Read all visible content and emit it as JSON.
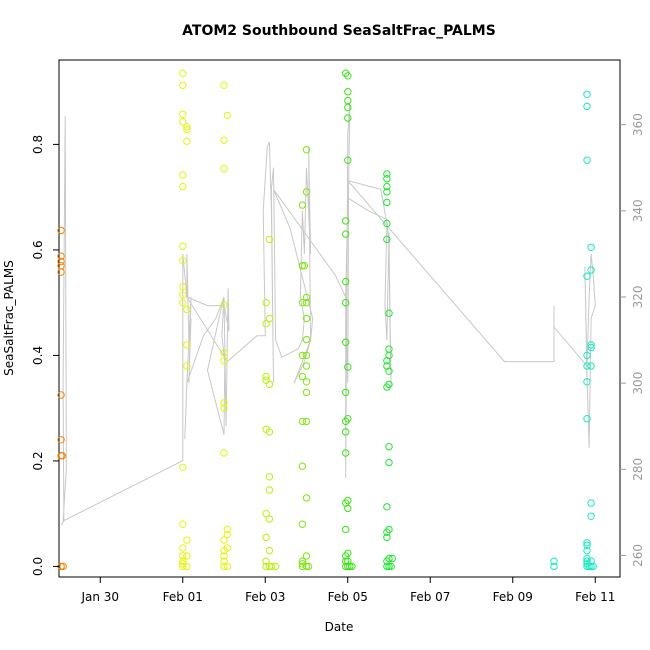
{
  "chart_data": {
    "type": "scatter",
    "title": "ATOM2 Southbound SeaSaltFrac_PALMS",
    "xlabel": "Date",
    "ylabel": "SeaSaltFrac_PALMS",
    "x_ticks": [
      "Jan 30",
      "Feb 01",
      "Feb 03",
      "Feb 05",
      "Feb 07",
      "Feb 09",
      "Feb 11"
    ],
    "x_range_days": [
      -9.0,
      4.6
    ],
    "ylim": [
      -0.02,
      0.96
    ],
    "y_ticks": [
      "0.0",
      "0.2",
      "0.4",
      "0.6",
      "0.8"
    ],
    "y2lim": [
      255,
      375
    ],
    "y2_ticks": [
      "260",
      "280",
      "300",
      "320",
      "340",
      "360"
    ],
    "grid": false,
    "legend": "none",
    "colors": {
      "line": "#c8c8c8",
      "axis": "#000000",
      "axis2": "#9a9a9a"
    },
    "series": [
      {
        "color": "#f5820a",
        "points": [
          [
            -8.95,
            0.0
          ],
          [
            -8.95,
            0.21
          ],
          [
            -8.95,
            0.24
          ],
          [
            -8.95,
            0.325
          ],
          [
            -8.95,
            0.558
          ],
          [
            -8.95,
            0.57
          ],
          [
            -8.95,
            0.578
          ],
          [
            -8.95,
            0.588
          ],
          [
            -8.95,
            0.637
          ],
          [
            -8.9,
            0.0
          ],
          [
            -8.92,
            0.21
          ]
        ]
      },
      {
        "color": "#e4f50c",
        "points": [
          [
            -6.0,
            0.0
          ],
          [
            -6.0,
            0.005
          ],
          [
            -6.0,
            0.01
          ],
          [
            -6.0,
            0.02
          ],
          [
            -6.0,
            0.035
          ],
          [
            -6.0,
            0.08
          ],
          [
            -6.0,
            0.188
          ],
          [
            -6.0,
            0.5
          ],
          [
            -6.0,
            0.515
          ],
          [
            -6.0,
            0.53
          ],
          [
            -6.0,
            0.58
          ],
          [
            -6.0,
            0.607
          ],
          [
            -6.0,
            0.72
          ],
          [
            -6.0,
            0.742
          ],
          [
            -6.0,
            0.843
          ],
          [
            -6.0,
            0.857
          ],
          [
            -6.0,
            0.912
          ],
          [
            -6.0,
            0.935
          ],
          [
            -5.9,
            0.0
          ],
          [
            -5.9,
            0.02
          ],
          [
            -5.9,
            0.05
          ],
          [
            -5.9,
            0.38
          ],
          [
            -5.9,
            0.42
          ],
          [
            -5.9,
            0.487
          ],
          [
            -5.9,
            0.806
          ],
          [
            -5.9,
            0.828
          ],
          [
            -5.9,
            0.833
          ],
          [
            -5.0,
            0.0
          ],
          [
            -5.0,
            0.01
          ],
          [
            -5.0,
            0.02
          ],
          [
            -5.0,
            0.03
          ],
          [
            -5.0,
            0.05
          ],
          [
            -5.0,
            0.215
          ],
          [
            -5.0,
            0.3
          ],
          [
            -5.0,
            0.31
          ],
          [
            -5.0,
            0.39
          ],
          [
            -5.0,
            0.405
          ],
          [
            -5.0,
            0.496
          ],
          [
            -5.0,
            0.754
          ],
          [
            -5.0,
            0.808
          ],
          [
            -5.0,
            0.912
          ],
          [
            -4.92,
            0.0
          ],
          [
            -4.92,
            0.035
          ],
          [
            -4.92,
            0.06
          ],
          [
            -4.92,
            0.07
          ],
          [
            -4.92,
            0.855
          ]
        ]
      },
      {
        "color": "#b7f20d",
        "points": [
          [
            -3.98,
            0.0
          ],
          [
            -3.98,
            0.01
          ],
          [
            -3.98,
            0.055
          ],
          [
            -3.98,
            0.1
          ],
          [
            -3.98,
            0.26
          ],
          [
            -3.98,
            0.353
          ],
          [
            -3.98,
            0.36
          ],
          [
            -3.98,
            0.46
          ],
          [
            -3.98,
            0.5
          ],
          [
            -3.9,
            0.0
          ],
          [
            -3.9,
            0.03
          ],
          [
            -3.9,
            0.09
          ],
          [
            -3.9,
            0.145
          ],
          [
            -3.9,
            0.17
          ],
          [
            -3.9,
            0.255
          ],
          [
            -3.9,
            0.345
          ],
          [
            -3.9,
            0.47
          ],
          [
            -3.9,
            0.62
          ],
          [
            -3.85,
            0.0
          ],
          [
            -3.75,
            0.0
          ]
        ]
      },
      {
        "color": "#7ee80f",
        "points": [
          [
            -3.1,
            0.0
          ],
          [
            -3.1,
            0.005
          ],
          [
            -3.1,
            0.01
          ],
          [
            -3.1,
            0.08
          ],
          [
            -3.1,
            0.19
          ],
          [
            -3.1,
            0.275
          ],
          [
            -3.1,
            0.36
          ],
          [
            -3.1,
            0.4
          ],
          [
            -3.1,
            0.5
          ],
          [
            -3.1,
            0.57
          ],
          [
            -3.1,
            0.685
          ],
          [
            -3.0,
            0.0
          ],
          [
            -3.0,
            0.02
          ],
          [
            -3.0,
            0.13
          ],
          [
            -3.0,
            0.275
          ],
          [
            -3.0,
            0.33
          ],
          [
            -3.0,
            0.35
          ],
          [
            -3.0,
            0.38
          ],
          [
            -3.0,
            0.4
          ],
          [
            -3.0,
            0.43
          ],
          [
            -3.0,
            0.47
          ],
          [
            -3.0,
            0.5
          ],
          [
            -3.0,
            0.51
          ],
          [
            -3.0,
            0.71
          ],
          [
            -3.0,
            0.79
          ],
          [
            -3.05,
            0.57
          ],
          [
            -2.95,
            0.0
          ]
        ]
      },
      {
        "color": "#3fe318",
        "points": [
          [
            -2.05,
            0.0
          ],
          [
            -2.05,
            0.01
          ],
          [
            -2.05,
            0.02
          ],
          [
            -2.05,
            0.07
          ],
          [
            -2.05,
            0.12
          ],
          [
            -2.05,
            0.215
          ],
          [
            -2.05,
            0.255
          ],
          [
            -2.05,
            0.275
          ],
          [
            -2.05,
            0.33
          ],
          [
            -2.05,
            0.425
          ],
          [
            -2.05,
            0.5
          ],
          [
            -2.05,
            0.54
          ],
          [
            -2.05,
            0.63
          ],
          [
            -2.05,
            0.655
          ],
          [
            -2.05,
            0.935
          ],
          [
            -2.0,
            0.0
          ],
          [
            -2.0,
            0.01
          ],
          [
            -2.0,
            0.025
          ],
          [
            -2.0,
            0.11
          ],
          [
            -2.0,
            0.125
          ],
          [
            -2.0,
            0.28
          ],
          [
            -2.0,
            0.378
          ],
          [
            -2.0,
            0.77
          ],
          [
            -2.0,
            0.85
          ],
          [
            -2.0,
            0.87
          ],
          [
            -2.0,
            0.883
          ],
          [
            -2.0,
            0.9
          ],
          [
            -2.0,
            0.93
          ],
          [
            -1.95,
            0.0
          ],
          [
            -1.9,
            0.0
          ]
        ]
      },
      {
        "color": "#22e630",
        "points": [
          [
            -1.05,
            0.0
          ],
          [
            -1.05,
            0.01
          ],
          [
            -1.05,
            0.055
          ],
          [
            -1.05,
            0.065
          ],
          [
            -1.05,
            0.113
          ],
          [
            -1.05,
            0.34
          ],
          [
            -1.05,
            0.38
          ],
          [
            -1.05,
            0.39
          ],
          [
            -1.05,
            0.62
          ],
          [
            -1.05,
            0.65
          ],
          [
            -1.05,
            0.69
          ],
          [
            -1.05,
            0.71
          ],
          [
            -1.05,
            0.72
          ],
          [
            -1.05,
            0.735
          ],
          [
            -1.05,
            0.744
          ],
          [
            -1.0,
            0.0
          ],
          [
            -1.0,
            0.015
          ],
          [
            -1.0,
            0.07
          ],
          [
            -1.0,
            0.197
          ],
          [
            -1.0,
            0.227
          ],
          [
            -1.0,
            0.345
          ],
          [
            -1.0,
            0.37
          ],
          [
            -1.0,
            0.4
          ],
          [
            -1.0,
            0.412
          ],
          [
            -1.0,
            0.48
          ],
          [
            -0.95,
            0.0
          ],
          [
            -0.92,
            0.015
          ]
        ]
      },
      {
        "color": "#18ebc0",
        "points": [
          [
            3.0,
            0.0
          ],
          [
            3.0,
            0.01
          ],
          [
            3.8,
            0.0
          ],
          [
            3.8,
            0.005
          ],
          [
            3.8,
            0.01
          ],
          [
            3.8,
            0.015
          ],
          [
            3.8,
            0.03
          ],
          [
            3.8,
            0.04
          ],
          [
            3.8,
            0.045
          ],
          [
            3.8,
            0.28
          ],
          [
            3.8,
            0.35
          ],
          [
            3.8,
            0.38
          ],
          [
            3.8,
            0.4
          ],
          [
            3.8,
            0.55
          ],
          [
            3.8,
            0.77
          ],
          [
            3.8,
            0.872
          ],
          [
            3.8,
            0.895
          ],
          [
            3.9,
            0.0
          ],
          [
            3.9,
            0.01
          ],
          [
            3.9,
            0.095
          ],
          [
            3.9,
            0.12
          ],
          [
            3.9,
            0.38
          ],
          [
            3.9,
            0.415
          ],
          [
            3.9,
            0.42
          ],
          [
            3.9,
            0.562
          ],
          [
            3.9,
            0.605
          ],
          [
            3.95,
            0.0
          ],
          [
            3.85,
            0.0
          ]
        ]
      }
    ],
    "line_y2_path": [
      [
        -8.95,
        267
      ],
      [
        -8.88,
        268
      ],
      [
        -8.9,
        300
      ],
      [
        -8.85,
        362
      ],
      [
        -8.82,
        280
      ],
      [
        -8.9,
        268
      ],
      [
        -6.0,
        282
      ],
      [
        -6.0,
        330
      ],
      [
        -5.9,
        320
      ],
      [
        -5.9,
        330
      ],
      [
        -5.85,
        310
      ],
      [
        -5.8,
        315
      ],
      [
        -5.85,
        300
      ],
      [
        -5.8,
        320
      ],
      [
        -5.9,
        300
      ],
      [
        -5.95,
        287
      ],
      [
        -5.9,
        300
      ],
      [
        -5.5,
        311
      ],
      [
        -5.2,
        315
      ],
      [
        -5.0,
        320
      ],
      [
        -5.05,
        311
      ],
      [
        -4.98,
        305
      ],
      [
        -5.0,
        288
      ],
      [
        -5.4,
        303
      ],
      [
        -5.05,
        318
      ],
      [
        -5.0,
        320
      ],
      [
        -4.95,
        290
      ],
      [
        -4.9,
        322
      ],
      [
        -4.88,
        312
      ],
      [
        -5.0,
        318
      ],
      [
        -5.4,
        318
      ],
      [
        -5.9,
        320
      ],
      [
        -4.92,
        305
      ],
      [
        -4.2,
        311
      ],
      [
        -4.0,
        311
      ],
      [
        -4.05,
        340
      ],
      [
        -3.95,
        355
      ],
      [
        -3.9,
        356
      ],
      [
        -3.85,
        340
      ],
      [
        -3.8,
        300
      ],
      [
        -3.85,
        345
      ],
      [
        -3.8,
        350
      ],
      [
        -3.75,
        310
      ],
      [
        -3.6,
        306
      ],
      [
        -3.2,
        308
      ],
      [
        -3.1,
        310
      ],
      [
        -3.05,
        315
      ],
      [
        -3.15,
        320
      ],
      [
        -3.1,
        340
      ],
      [
        -3.05,
        330
      ],
      [
        -3.0,
        350
      ],
      [
        -2.95,
        340
      ],
      [
        -2.9,
        330
      ],
      [
        -2.95,
        355
      ],
      [
        -2.9,
        310
      ],
      [
        -3.3,
        300
      ],
      [
        -3.05,
        305
      ],
      [
        -2.9,
        310
      ],
      [
        -2.85,
        315
      ],
      [
        -3.4,
        336
      ],
      [
        -3.8,
        345
      ],
      [
        -2.3,
        325
      ],
      [
        -2.05,
        320
      ],
      [
        -2.05,
        278
      ],
      [
        -2.0,
        358
      ],
      [
        -1.95,
        365
      ],
      [
        -1.98,
        345
      ],
      [
        -2.0,
        300
      ],
      [
        -2.05,
        320
      ],
      [
        -2.0,
        343
      ],
      [
        -1.5,
        340
      ],
      [
        -1.05,
        338
      ],
      [
        -1.0,
        332
      ],
      [
        -0.95,
        299
      ],
      [
        -0.98,
        315
      ],
      [
        -1.0,
        335
      ],
      [
        -1.05,
        310
      ],
      [
        -1.1,
        318
      ],
      [
        -1.05,
        337
      ],
      [
        -1.2,
        345
      ],
      [
        -2.0,
        347
      ],
      [
        1.8,
        305
      ],
      [
        3.0,
        305
      ],
      [
        3.0,
        318
      ],
      [
        3.0,
        312
      ],
      [
        3.0,
        313
      ],
      [
        3.8,
        304
      ],
      [
        3.85,
        320
      ],
      [
        3.9,
        330
      ],
      [
        3.95,
        325
      ],
      [
        4.0,
        318
      ],
      [
        3.9,
        315
      ],
      [
        3.85,
        285
      ],
      [
        3.8,
        302
      ],
      [
        3.75,
        327
      ],
      [
        3.8,
        300
      ]
    ]
  }
}
